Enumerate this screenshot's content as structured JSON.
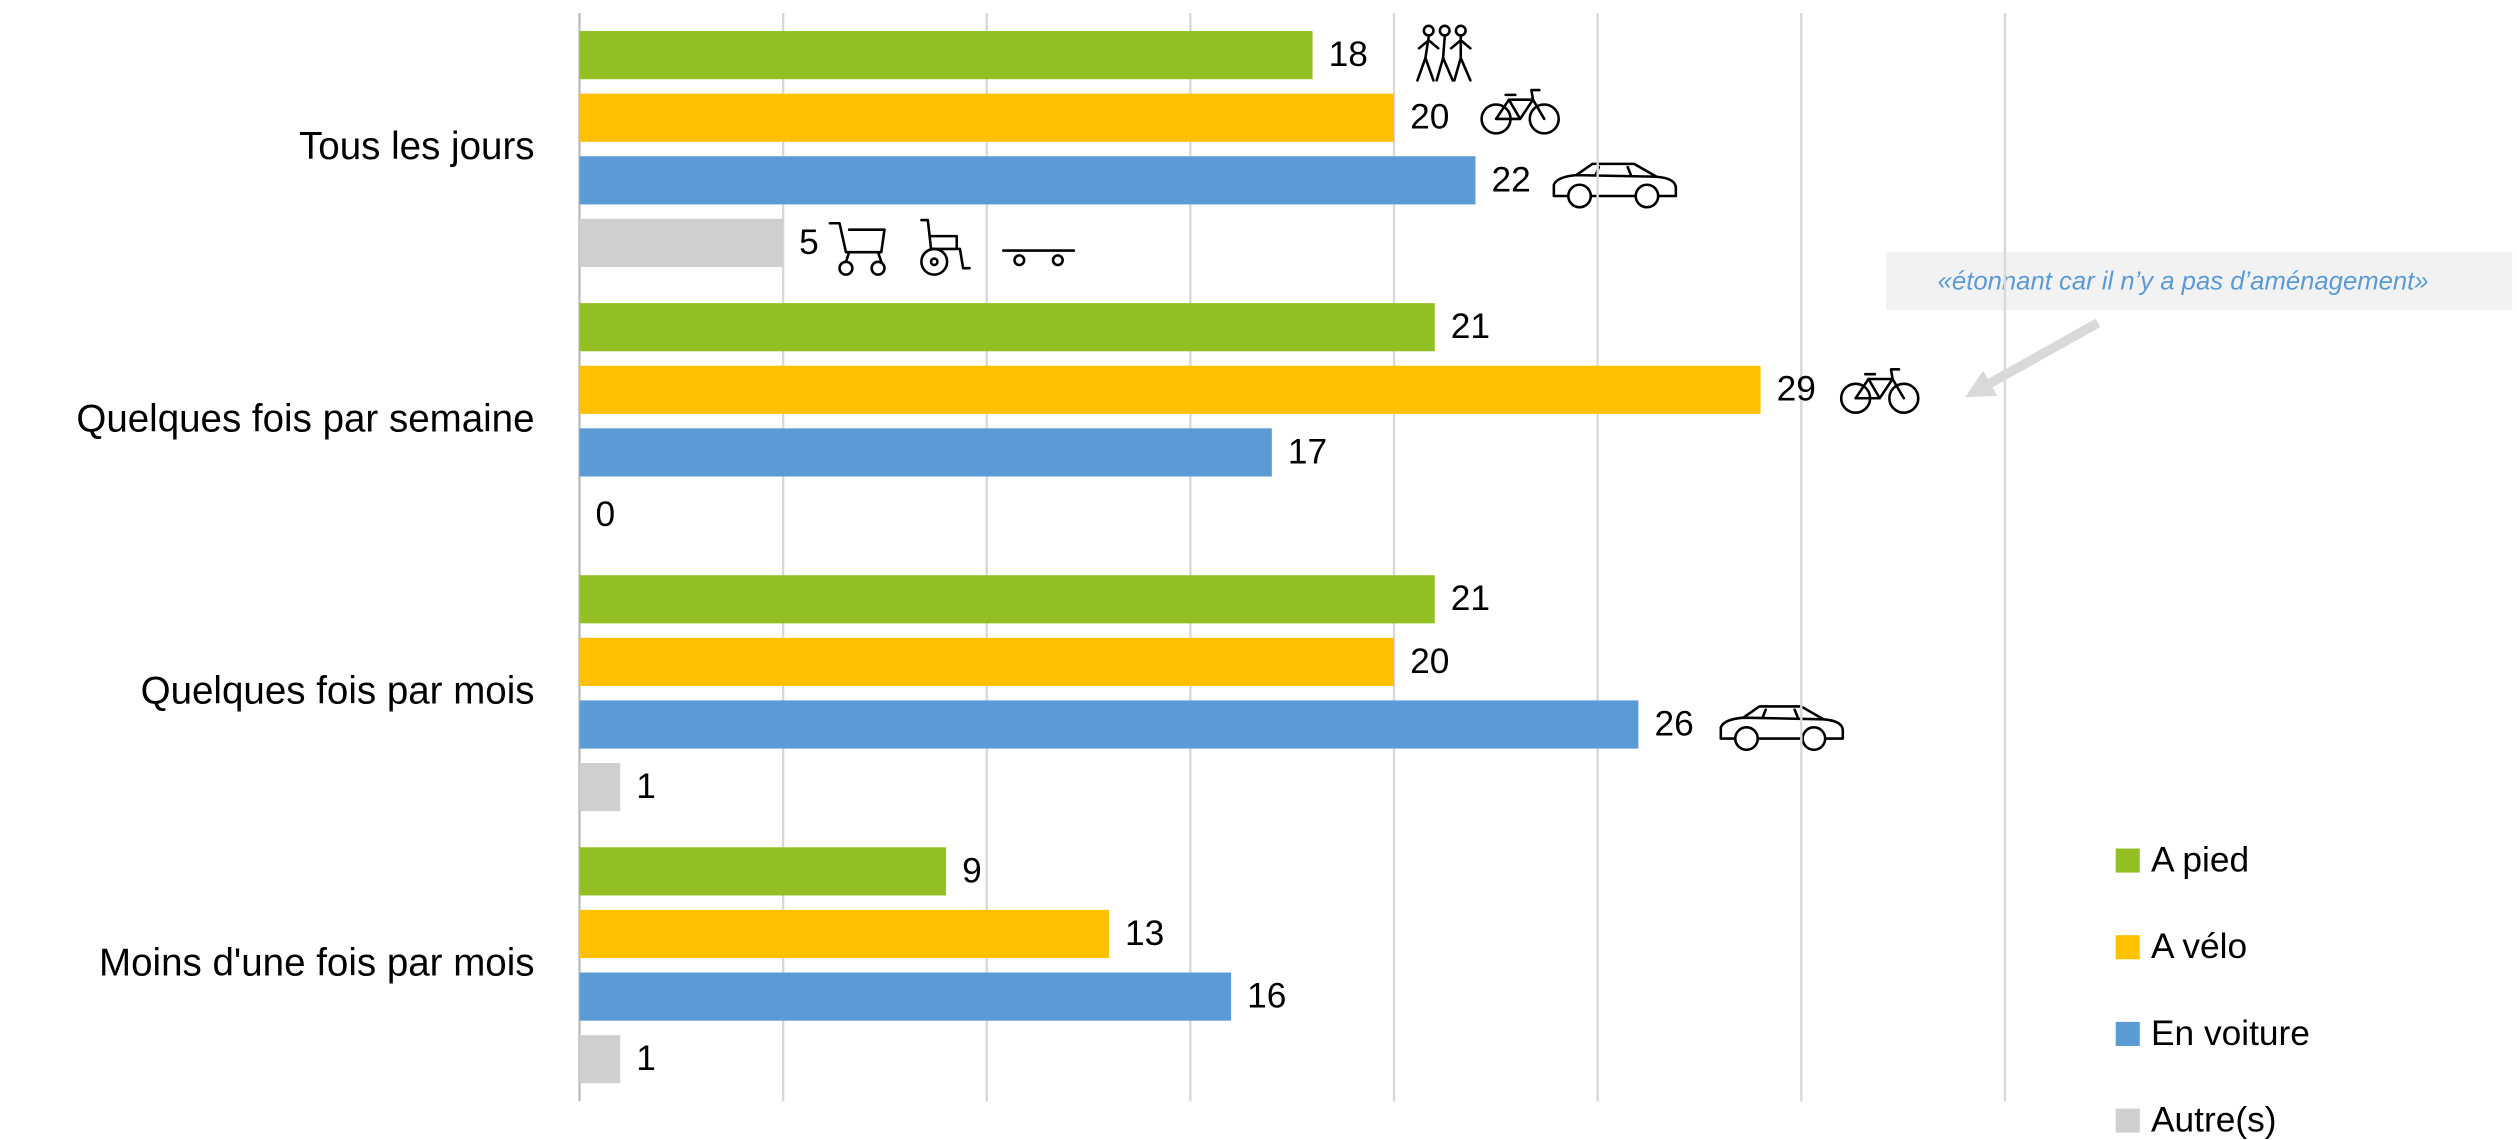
{
  "chart_data": {
    "type": "hbar",
    "categories": [
      "Tous les jours",
      "Quelques fois par semaine",
      "Quelques fois par mois",
      "Moins d'une fois par mois"
    ],
    "series": [
      {
        "name": "A pied",
        "color": "#92c023",
        "values": [
          18,
          21,
          21,
          9
        ]
      },
      {
        "name": "A vélo",
        "color": "#ffc000",
        "values": [
          20,
          29,
          20,
          13
        ]
      },
      {
        "name": "En voiture",
        "color": "#5b9bd5",
        "values": [
          22,
          17,
          26,
          16
        ]
      },
      {
        "name": "Autre(s)",
        "color": "#d0cece",
        "values": [
          5,
          0,
          1,
          1
        ]
      }
    ],
    "xlim": [
      0,
      35
    ],
    "xticks": [
      0,
      5,
      10,
      15,
      20,
      25,
      30,
      35
    ],
    "grid": true,
    "legend": "bottom-right",
    "annotation": "«étonnant car il n’y a pas d’aménagement»"
  }
}
